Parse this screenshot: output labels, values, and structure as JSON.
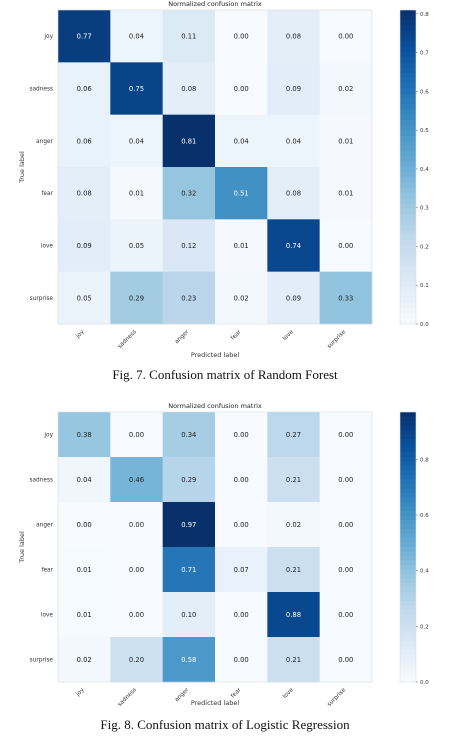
{
  "figures": [
    {
      "caption": "Fig. 7. Confusion matrix of Random Forest",
      "chart_data": {
        "type": "heatmap",
        "title": "Normalized confusion matrix",
        "xlabel": "Predicted label",
        "ylabel": "True label",
        "row_labels": [
          "joy",
          "sadness",
          "anger",
          "fear",
          "love",
          "surprise"
        ],
        "col_labels": [
          "joy",
          "sadness",
          "anger",
          "fear",
          "love",
          "surprise"
        ],
        "values": [
          [
            0.77,
            0.04,
            0.11,
            0.0,
            0.08,
            0.0
          ],
          [
            0.06,
            0.75,
            0.08,
            0.0,
            0.09,
            0.02
          ],
          [
            0.06,
            0.04,
            0.81,
            0.04,
            0.04,
            0.01
          ],
          [
            0.08,
            0.01,
            0.32,
            0.51,
            0.08,
            0.01
          ],
          [
            0.09,
            0.05,
            0.12,
            0.01,
            0.74,
            0.0
          ],
          [
            0.05,
            0.29,
            0.23,
            0.02,
            0.09,
            0.33
          ]
        ],
        "colorbar": {
          "min": 0.0,
          "max": 0.81,
          "ticks": [
            "0.0",
            "0.1",
            "0.2",
            "0.3",
            "0.4",
            "0.5",
            "0.6",
            "0.7",
            "0.8"
          ],
          "tick_values": [
            0,
            0.1,
            0.2,
            0.3,
            0.4,
            0.5,
            0.6,
            0.7,
            0.8
          ]
        },
        "colormap": "Blues",
        "grid": false
      }
    },
    {
      "caption": "Fig. 8. Confusion matrix of Logistic Regression",
      "chart_data": {
        "type": "heatmap",
        "title": "Normalized confusion matrix",
        "xlabel": "Predicted label",
        "ylabel": "True label",
        "row_labels": [
          "joy",
          "sadness",
          "anger",
          "fear",
          "love",
          "surprise"
        ],
        "col_labels": [
          "joy",
          "sadness",
          "anger",
          "fear",
          "love",
          "surprise"
        ],
        "values": [
          [
            0.38,
            0.0,
            0.34,
            0.0,
            0.27,
            0.0
          ],
          [
            0.04,
            0.46,
            0.29,
            0.0,
            0.21,
            0.0
          ],
          [
            0.0,
            0.0,
            0.97,
            0.0,
            0.02,
            0.0
          ],
          [
            0.01,
            0.0,
            0.71,
            0.07,
            0.21,
            0.0
          ],
          [
            0.01,
            0.0,
            0.1,
            0.0,
            0.88,
            0.0
          ],
          [
            0.02,
            0.2,
            0.58,
            0.0,
            0.21,
            0.0
          ]
        ],
        "colorbar": {
          "min": 0.0,
          "max": 0.97,
          "ticks": [
            "0.0",
            "0.2",
            "0.4",
            "0.6",
            "0.8"
          ],
          "tick_values": [
            0,
            0.2,
            0.4,
            0.6,
            0.8
          ]
        },
        "colormap": "Blues",
        "grid": false
      }
    }
  ]
}
